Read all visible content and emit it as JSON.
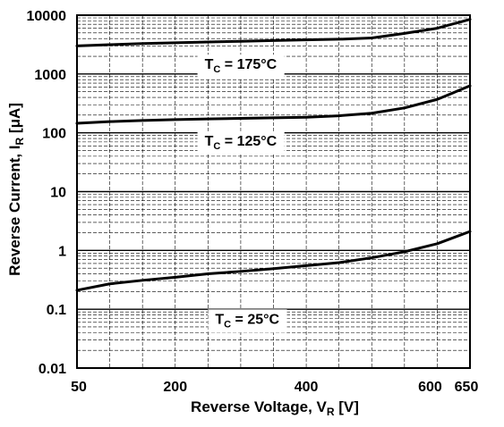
{
  "chart_data": {
    "type": "line",
    "title": "",
    "xlabel": {
      "main": "Reverse Voltage, V",
      "sub": "R",
      "unit": " [V]"
    },
    "ylabel": {
      "main": "Reverse Current, I",
      "sub": "R",
      "unit": " [μA]"
    },
    "xlim": [
      50,
      650
    ],
    "ylim": [
      0.01,
      10000
    ],
    "yscale": "log",
    "x_ticks": [
      50,
      200,
      400,
      600,
      650
    ],
    "x_tick_labels": [
      "50",
      "200",
      "400",
      "600",
      "650"
    ],
    "y_ticks": [
      0.01,
      0.1,
      1,
      10,
      100,
      1000,
      10000
    ],
    "y_tick_labels": [
      "0.01",
      "0.1",
      "1",
      "10",
      "100",
      "1000",
      "10000"
    ],
    "grid": true,
    "series": [
      {
        "name": "175",
        "x": [
          50,
          100,
          150,
          200,
          250,
          300,
          350,
          400,
          450,
          500,
          550,
          600,
          650
        ],
        "values": [
          3000,
          3150,
          3300,
          3400,
          3500,
          3600,
          3700,
          3800,
          3900,
          4100,
          4900,
          6000,
          8500
        ]
      },
      {
        "name": "125",
        "x": [
          50,
          100,
          150,
          200,
          250,
          300,
          350,
          400,
          450,
          500,
          550,
          600,
          650
        ],
        "values": [
          145,
          155,
          162,
          168,
          172,
          176,
          180,
          184,
          195,
          215,
          265,
          370,
          630
        ]
      },
      {
        "name": "25",
        "x": [
          50,
          100,
          150,
          200,
          250,
          300,
          350,
          400,
          450,
          500,
          550,
          600,
          650
        ],
        "values": [
          0.21,
          0.27,
          0.31,
          0.35,
          0.4,
          0.44,
          0.49,
          0.55,
          0.62,
          0.75,
          0.95,
          1.3,
          2.1
        ]
      }
    ],
    "annotations": [
      {
        "prefix": "T",
        "sub": "C",
        "value": " = 175°C",
        "at_x": 300,
        "at_y": 1500
      },
      {
        "prefix": "T",
        "sub": "C",
        "value": " = 125°C",
        "at_x": 300,
        "at_y": 75
      },
      {
        "prefix": "T",
        "sub": "C",
        "value": " = 25°C",
        "at_x": 310,
        "at_y": 0.07
      }
    ],
    "colors": {
      "line": "#000000",
      "grid": "#000000",
      "background": "#ffffff"
    }
  }
}
